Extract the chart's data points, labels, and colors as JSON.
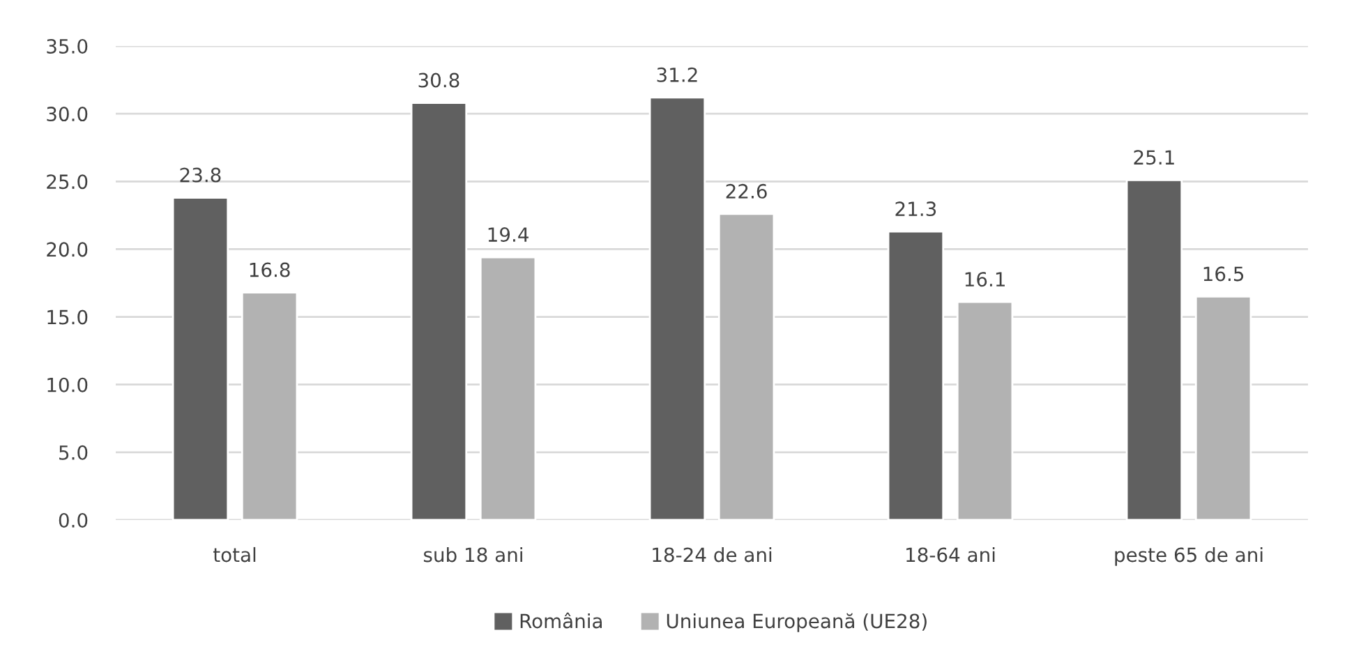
{
  "chart_data": {
    "type": "bar",
    "categories": [
      "total",
      "sub 18 ani",
      "18-24 de ani",
      "18-64 ani",
      "peste 65 de ani"
    ],
    "series": [
      {
        "name": "România",
        "color": "#606060",
        "values": [
          23.8,
          30.8,
          31.2,
          21.3,
          25.1
        ]
      },
      {
        "name": "Uniunea Europeană (UE28)",
        "color": "#b2b2b2",
        "values": [
          16.8,
          19.4,
          22.6,
          16.1,
          16.5
        ]
      }
    ],
    "ylim": [
      0,
      35
    ],
    "yticks": [
      {
        "value": 0,
        "label": "0.0"
      },
      {
        "value": 5,
        "label": "5.0"
      },
      {
        "value": 10,
        "label": "10.0"
      },
      {
        "value": 15,
        "label": "15.0"
      },
      {
        "value": 20,
        "label": "20.0"
      },
      {
        "value": 25,
        "label": "25.0"
      },
      {
        "value": 30,
        "label": "30.0"
      },
      {
        "value": 35,
        "label": "35.0"
      }
    ],
    "grid": "y",
    "data_labels": true,
    "legend": "bottom"
  }
}
